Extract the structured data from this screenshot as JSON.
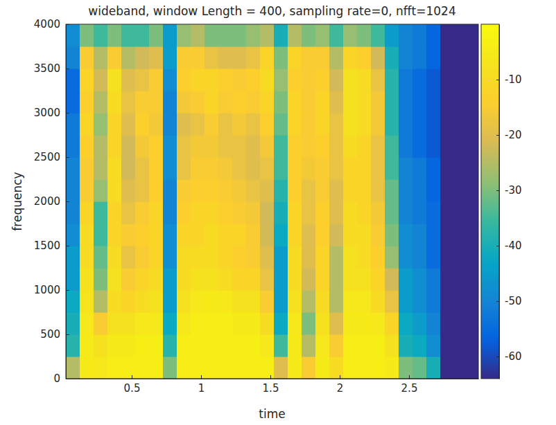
{
  "chart_data": {
    "type": "heatmap",
    "title": "wideband, window Length = 400, sampling rate=0, nfft=1024",
    "x_label": "time",
    "y_label": "frequency",
    "xlim": [
      0.025,
      3.0
    ],
    "xticks": [
      0.5,
      1,
      1.5,
      2,
      2.5
    ],
    "ylim": [
      0,
      4000
    ],
    "yticks": [
      0,
      500,
      1000,
      1500,
      2000,
      2500,
      3000,
      3500,
      4000
    ],
    "clim": [
      -64,
      0
    ],
    "cticks": [
      -60,
      -50,
      -40,
      -30,
      -20,
      -10
    ],
    "x": [
      0.075,
      0.175,
      0.275,
      0.375,
      0.475,
      0.575,
      0.675,
      0.775,
      0.875,
      0.975,
      1.075,
      1.175,
      1.275,
      1.375,
      1.475,
      1.575,
      1.675,
      1.775,
      1.875,
      1.975,
      2.075,
      2.175,
      2.275,
      2.375,
      2.475,
      2.575,
      2.675,
      2.775,
      2.875,
      2.975
    ],
    "y": [
      125,
      375,
      625,
      875,
      1125,
      1375,
      1625,
      1875,
      2125,
      2375,
      2625,
      2875,
      3125,
      3375,
      3625,
      3875
    ],
    "z": [
      [
        -25,
        -38,
        -40,
        -42,
        -45,
        -45,
        -48,
        -50,
        -50,
        -50,
        -52,
        -52,
        -55,
        -55,
        -50,
        -48
      ],
      [
        -5,
        -5,
        -6,
        -7,
        -8,
        -10,
        -10,
        -12,
        -15,
        -15,
        -14,
        -12,
        -14,
        -12,
        -15,
        -30
      ],
      [
        -6,
        -8,
        -15,
        -25,
        -30,
        -32,
        -35,
        -35,
        -28,
        -25,
        -25,
        -28,
        -25,
        -22,
        -25,
        -35
      ],
      [
        -4,
        -5,
        -8,
        -10,
        -8,
        -10,
        -12,
        -12,
        -10,
        -10,
        -12,
        -12,
        -10,
        -8,
        -15,
        -30
      ],
      [
        -4,
        -5,
        -8,
        -12,
        -15,
        -18,
        -15,
        -18,
        -20,
        -22,
        -22,
        -20,
        -18,
        -20,
        -25,
        -35
      ],
      [
        -4,
        -4,
        -6,
        -10,
        -12,
        -15,
        -14,
        -15,
        -18,
        -18,
        -16,
        -14,
        -15,
        -18,
        -22,
        -35
      ],
      [
        -4,
        -4,
        -6,
        -8,
        -10,
        -12,
        -12,
        -12,
        -14,
        -14,
        -14,
        -16,
        -15,
        -15,
        -20,
        -30
      ],
      [
        -30,
        -38,
        -42,
        -45,
        -45,
        -48,
        -48,
        -50,
        -50,
        -48,
        -48,
        -50,
        -50,
        -48,
        -45,
        -45
      ],
      [
        -4,
        -4,
        -6,
        -8,
        -10,
        -10,
        -12,
        -14,
        -15,
        -18,
        -18,
        -20,
        -16,
        -14,
        -15,
        -28
      ],
      [
        -4,
        -4,
        -4,
        -6,
        -8,
        -10,
        -12,
        -12,
        -14,
        -15,
        -16,
        -18,
        -15,
        -12,
        -15,
        -25
      ],
      [
        -4,
        -4,
        -4,
        -5,
        -8,
        -10,
        -10,
        -12,
        -14,
        -15,
        -16,
        -15,
        -12,
        -12,
        -18,
        -30
      ],
      [
        -4,
        -4,
        -4,
        -6,
        -10,
        -12,
        -12,
        -14,
        -15,
        -16,
        -18,
        -18,
        -15,
        -14,
        -20,
        -30
      ],
      [
        -4,
        -4,
        -5,
        -8,
        -12,
        -14,
        -12,
        -15,
        -16,
        -18,
        -18,
        -16,
        -14,
        -15,
        -20,
        -30
      ],
      [
        -4,
        -4,
        -5,
        -8,
        -12,
        -15,
        -15,
        -16,
        -18,
        -20,
        -20,
        -18,
        -15,
        -14,
        -18,
        -28
      ],
      [
        -4,
        -6,
        -10,
        -15,
        -18,
        -20,
        -22,
        -22,
        -20,
        -18,
        -16,
        -14,
        -12,
        -10,
        -12,
        -25
      ],
      [
        -20,
        -35,
        -42,
        -45,
        -45,
        -45,
        -42,
        -40,
        -38,
        -35,
        -35,
        -32,
        -30,
        -28,
        -30,
        -40
      ],
      [
        -5,
        -5,
        -6,
        -8,
        -10,
        -10,
        -12,
        -12,
        -14,
        -14,
        -14,
        -12,
        -12,
        -14,
        -12,
        -25
      ],
      [
        -15,
        -25,
        -30,
        -25,
        -22,
        -20,
        -20,
        -18,
        -18,
        -16,
        -15,
        -15,
        -15,
        -15,
        -15,
        -30
      ],
      [
        -5,
        -6,
        -8,
        -10,
        -12,
        -12,
        -14,
        -14,
        -15,
        -15,
        -14,
        -12,
        -12,
        -14,
        -15,
        -28
      ],
      [
        -10,
        -15,
        -20,
        -25,
        -25,
        -25,
        -22,
        -20,
        -20,
        -18,
        -18,
        -18,
        -20,
        -22,
        -25,
        -35
      ],
      [
        -4,
        -4,
        -5,
        -6,
        -8,
        -8,
        -10,
        -10,
        -12,
        -12,
        -10,
        -8,
        -8,
        -8,
        -12,
        -28
      ],
      [
        -4,
        -4,
        -5,
        -6,
        -8,
        -10,
        -10,
        -12,
        -12,
        -12,
        -12,
        -10,
        -10,
        -10,
        -14,
        -30
      ],
      [
        -4,
        -4,
        -6,
        -10,
        -12,
        -14,
        -15,
        -16,
        -18,
        -18,
        -18,
        -16,
        -16,
        -18,
        -22,
        -35
      ],
      [
        -5,
        -8,
        -12,
        -18,
        -22,
        -28,
        -30,
        -32,
        -32,
        -35,
        -35,
        -38,
        -38,
        -38,
        -40,
        -45
      ],
      [
        -30,
        -40,
        -42,
        -45,
        -45,
        -48,
        -48,
        -50,
        -50,
        -50,
        -52,
        -52,
        -52,
        -52,
        -50,
        -50
      ],
      [
        -32,
        -42,
        -45,
        -48,
        -48,
        -50,
        -50,
        -52,
        -52,
        -52,
        -55,
        -55,
        -55,
        -55,
        -52,
        -52
      ],
      [
        -40,
        -48,
        -50,
        -52,
        -52,
        -55,
        -55,
        -55,
        -56,
        -56,
        -58,
        -58,
        -58,
        -58,
        -56,
        -56
      ],
      [
        -64,
        -64,
        -64,
        -64,
        -64,
        -64,
        -64,
        -64,
        -64,
        -64,
        -64,
        -64,
        -64,
        -64,
        -64,
        -64
      ],
      [
        -64,
        -64,
        -64,
        -64,
        -64,
        -64,
        -64,
        -64,
        -64,
        -64,
        -64,
        -64,
        -64,
        -64,
        -64,
        -64
      ],
      [
        -64,
        -64,
        -64,
        -64,
        -64,
        -64,
        -64,
        -64,
        -64,
        -64,
        -64,
        -64,
        -64,
        -64,
        -64,
        -64
      ]
    ]
  }
}
